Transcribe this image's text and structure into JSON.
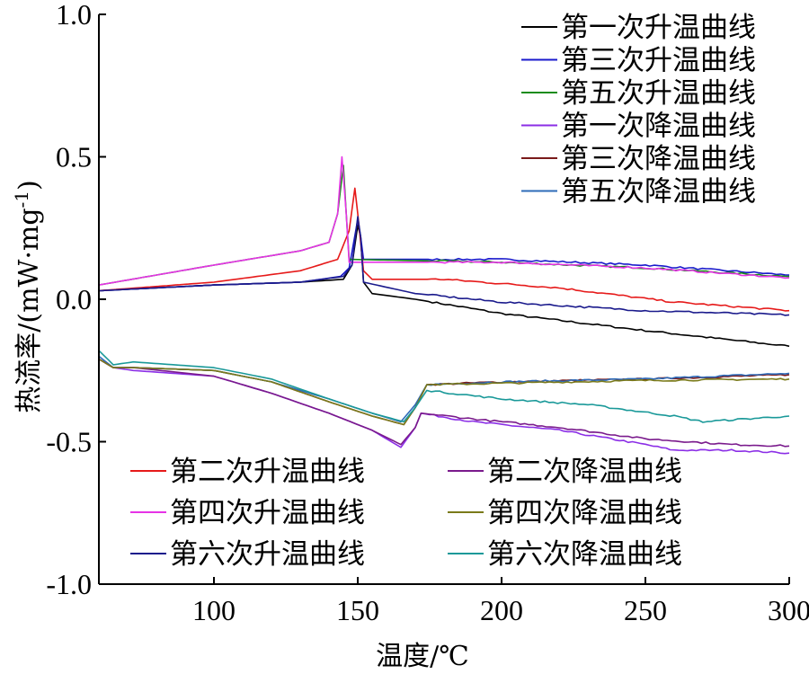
{
  "chart_data": {
    "type": "line",
    "xlabel": "温度/℃",
    "ylabel": "热流率/(mW·mg-1)",
    "xlim": [
      60,
      300
    ],
    "ylim": [
      -1.0,
      1.0
    ],
    "xticks": [
      {
        "value": 100,
        "label": "100"
      },
      {
        "value": 150,
        "label": "150"
      },
      {
        "value": 200,
        "label": "200"
      },
      {
        "value": 250,
        "label": "250"
      },
      {
        "value": 300,
        "label": "300"
      }
    ],
    "yticks": [
      {
        "value": 1.0,
        "label": "1.0"
      },
      {
        "value": 0.5,
        "label": "0.5"
      },
      {
        "value": 0.0,
        "label": "0.0"
      },
      {
        "value": -0.5,
        "label": "-0.5"
      },
      {
        "value": -1.0,
        "label": "-1.0"
      }
    ],
    "grid": false,
    "legend_groups": [
      {
        "placement": "top-right",
        "entries": [
          "第一次升温曲线",
          "第三次升温曲线",
          "第五次升温曲线",
          "第一次降温曲线",
          "第三次降温曲线",
          "第五次降温曲线"
        ]
      },
      {
        "placement": "bottom-left-column",
        "entries": [
          "第二次升温曲线",
          "第四次升温曲线",
          "第六次升温曲线"
        ]
      },
      {
        "placement": "bottom-right-column",
        "entries": [
          "第二次降温曲线",
          "第四次降温曲线",
          "第六次降温曲线"
        ]
      }
    ],
    "series": [
      {
        "name": "第一次升温曲线",
        "color": "#000000",
        "points": [
          [
            60,
            0.03
          ],
          [
            100,
            0.05
          ],
          [
            130,
            0.06
          ],
          [
            145,
            0.07
          ],
          [
            148,
            0.12
          ],
          [
            150,
            0.26
          ],
          [
            151,
            0.22
          ],
          [
            152,
            0.06
          ],
          [
            155,
            0.02
          ],
          [
            170,
            0.0
          ],
          [
            200,
            -0.05
          ],
          [
            250,
            -0.11
          ],
          [
            300,
            -0.165
          ]
        ]
      },
      {
        "name": "第三次升温曲线",
        "color": "#1a1acc",
        "points": [
          [
            60,
            0.03
          ],
          [
            100,
            0.05
          ],
          [
            130,
            0.06
          ],
          [
            144,
            0.08
          ],
          [
            147,
            0.11
          ],
          [
            150,
            0.28
          ],
          [
            151,
            0.22
          ],
          [
            152,
            0.14
          ],
          [
            200,
            0.14
          ],
          [
            250,
            0.12
          ],
          [
            300,
            0.085
          ]
        ]
      },
      {
        "name": "第五次升温曲线",
        "color": "#1a8c1a",
        "points": [
          [
            60,
            0.05
          ],
          [
            100,
            0.12
          ],
          [
            130,
            0.17
          ],
          [
            140,
            0.2
          ],
          [
            143,
            0.3
          ],
          [
            145,
            0.47
          ],
          [
            146,
            0.3
          ],
          [
            147,
            0.14
          ],
          [
            200,
            0.13
          ],
          [
            250,
            0.11
          ],
          [
            300,
            0.08
          ]
        ]
      },
      {
        "name": "第一次降温曲线",
        "color": "#8b2ee6",
        "points": [
          [
            60,
            -0.21
          ],
          [
            65,
            -0.24
          ],
          [
            72,
            -0.25
          ],
          [
            100,
            -0.27
          ],
          [
            120,
            -0.33
          ],
          [
            140,
            -0.4
          ],
          [
            155,
            -0.46
          ],
          [
            165,
            -0.52
          ],
          [
            170,
            -0.45
          ],
          [
            172,
            -0.4
          ],
          [
            190,
            -0.43
          ],
          [
            220,
            -0.46
          ],
          [
            250,
            -0.51
          ],
          [
            260,
            -0.53
          ],
          [
            280,
            -0.53
          ],
          [
            300,
            -0.54
          ]
        ]
      },
      {
        "name": "第三次降温曲线",
        "color": "#7a1a1a",
        "points": [
          [
            60,
            -0.21
          ],
          [
            65,
            -0.24
          ],
          [
            72,
            -0.24
          ],
          [
            100,
            -0.25
          ],
          [
            120,
            -0.29
          ],
          [
            140,
            -0.36
          ],
          [
            155,
            -0.41
          ],
          [
            166,
            -0.44
          ],
          [
            170,
            -0.38
          ],
          [
            174,
            -0.3
          ],
          [
            200,
            -0.29
          ],
          [
            250,
            -0.28
          ],
          [
            300,
            -0.265
          ]
        ]
      },
      {
        "name": "第五次降温曲线",
        "color": "#2e6bb8",
        "points": [
          [
            60,
            -0.2
          ],
          [
            65,
            -0.24
          ],
          [
            72,
            -0.24
          ],
          [
            100,
            -0.25
          ],
          [
            120,
            -0.29
          ],
          [
            140,
            -0.35
          ],
          [
            155,
            -0.4
          ],
          [
            165,
            -0.43
          ],
          [
            170,
            -0.37
          ],
          [
            174,
            -0.3
          ],
          [
            200,
            -0.29
          ],
          [
            250,
            -0.28
          ],
          [
            300,
            -0.26
          ]
        ]
      },
      {
        "name": "第二次升温曲线",
        "color": "#e61a1a",
        "points": [
          [
            60,
            0.03
          ],
          [
            100,
            0.06
          ],
          [
            130,
            0.1
          ],
          [
            143,
            0.14
          ],
          [
            147,
            0.24
          ],
          [
            149,
            0.39
          ],
          [
            150,
            0.3
          ],
          [
            152,
            0.1
          ],
          [
            155,
            0.07
          ],
          [
            180,
            0.07
          ],
          [
            220,
            0.04
          ],
          [
            260,
            -0.01
          ],
          [
            300,
            -0.04
          ]
        ]
      },
      {
        "name": "第四次升温曲线",
        "color": "#e633e6",
        "points": [
          [
            60,
            0.05
          ],
          [
            100,
            0.12
          ],
          [
            130,
            0.17
          ],
          [
            140,
            0.2
          ],
          [
            143,
            0.3
          ],
          [
            144.5,
            0.5
          ],
          [
            146,
            0.3
          ],
          [
            147,
            0.13
          ],
          [
            200,
            0.13
          ],
          [
            250,
            0.11
          ],
          [
            300,
            0.075
          ]
        ]
      },
      {
        "name": "第六次升温曲线",
        "color": "#1a1a8c",
        "points": [
          [
            60,
            0.03
          ],
          [
            100,
            0.05
          ],
          [
            130,
            0.06
          ],
          [
            145,
            0.08
          ],
          [
            148,
            0.12
          ],
          [
            150,
            0.29
          ],
          [
            151,
            0.22
          ],
          [
            152,
            0.06
          ],
          [
            170,
            0.02
          ],
          [
            200,
            -0.01
          ],
          [
            250,
            -0.04
          ],
          [
            300,
            -0.055
          ]
        ]
      },
      {
        "name": "第二次降温曲线",
        "color": "#7a1a8c",
        "points": [
          [
            60,
            -0.21
          ],
          [
            65,
            -0.24
          ],
          [
            72,
            -0.24
          ],
          [
            100,
            -0.27
          ],
          [
            120,
            -0.33
          ],
          [
            140,
            -0.4
          ],
          [
            155,
            -0.46
          ],
          [
            165,
            -0.51
          ],
          [
            170,
            -0.45
          ],
          [
            172,
            -0.4
          ],
          [
            190,
            -0.42
          ],
          [
            220,
            -0.45
          ],
          [
            250,
            -0.49
          ],
          [
            280,
            -0.51
          ],
          [
            300,
            -0.515
          ]
        ]
      },
      {
        "name": "第四次降温曲线",
        "color": "#7a7a1a",
        "points": [
          [
            60,
            -0.21
          ],
          [
            65,
            -0.24
          ],
          [
            72,
            -0.24
          ],
          [
            100,
            -0.25
          ],
          [
            120,
            -0.29
          ],
          [
            140,
            -0.36
          ],
          [
            155,
            -0.41
          ],
          [
            166,
            -0.44
          ],
          [
            170,
            -0.38
          ],
          [
            174,
            -0.3
          ],
          [
            200,
            -0.295
          ],
          [
            250,
            -0.285
          ],
          [
            300,
            -0.28
          ]
        ]
      },
      {
        "name": "第六次降温曲线",
        "color": "#1a9999",
        "points": [
          [
            60,
            -0.18
          ],
          [
            65,
            -0.23
          ],
          [
            72,
            -0.22
          ],
          [
            100,
            -0.24
          ],
          [
            120,
            -0.28
          ],
          [
            140,
            -0.35
          ],
          [
            155,
            -0.4
          ],
          [
            166,
            -0.43
          ],
          [
            170,
            -0.38
          ],
          [
            174,
            -0.32
          ],
          [
            200,
            -0.35
          ],
          [
            230,
            -0.37
          ],
          [
            260,
            -0.41
          ],
          [
            270,
            -0.43
          ],
          [
            300,
            -0.41
          ]
        ]
      }
    ]
  }
}
